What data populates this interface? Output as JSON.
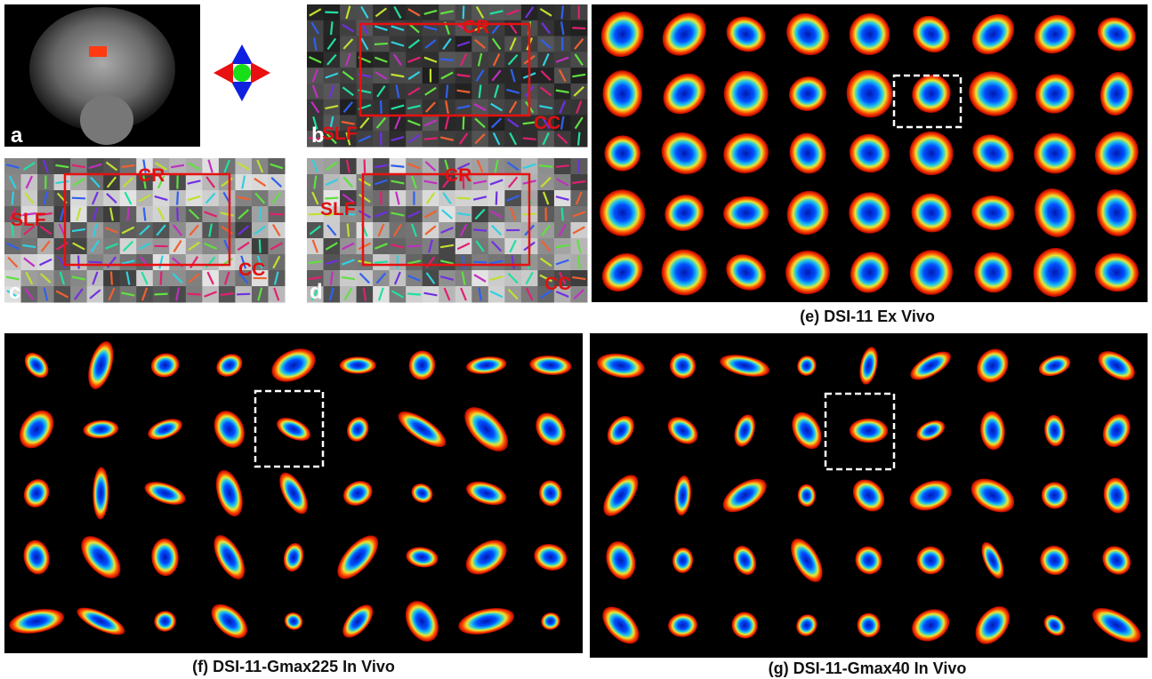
{
  "panels": {
    "a": {
      "label": "a"
    },
    "b": {
      "label": "b",
      "annotations": [
        "CR",
        "SLF",
        "CC"
      ]
    },
    "c": {
      "label": "c",
      "annotations": [
        "CR",
        "SLF",
        "CC"
      ]
    },
    "d": {
      "label": "d",
      "annotations": [
        "CR",
        "SLF",
        "CC"
      ]
    },
    "e": {
      "caption": "(e) DSI-11 Ex Vivo"
    },
    "f": {
      "caption": "(f) DSI-11-Gmax225 In Vivo"
    },
    "g": {
      "caption": "(g) DSI-11-Gmax40 In Vivo"
    }
  }
}
